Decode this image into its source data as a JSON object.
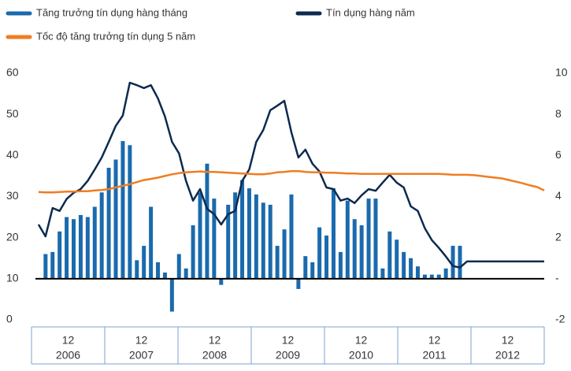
{
  "chart_data": {
    "type": "bar-line",
    "legend": "top-left",
    "categories": [
      {
        "month": "12",
        "year": "2006"
      },
      {
        "month": "12",
        "year": "2007"
      },
      {
        "month": "12",
        "year": "2008"
      },
      {
        "month": "12",
        "year": "2009"
      },
      {
        "month": "12",
        "year": "2010"
      },
      {
        "month": "12",
        "year": "2011"
      },
      {
        "month": "12",
        "year": "2012"
      }
    ],
    "x": [
      1,
      2,
      3,
      4,
      5,
      6,
      7,
      8,
      9,
      10,
      11,
      12,
      13,
      14,
      15,
      16,
      17,
      18,
      19,
      20,
      21,
      22,
      23,
      24,
      25,
      26,
      27,
      28,
      29,
      30,
      31,
      32,
      33,
      34,
      35,
      36,
      37,
      38,
      39,
      40,
      41,
      42,
      43,
      44,
      45,
      46,
      47,
      48,
      49,
      50,
      51,
      52,
      53,
      54,
      55,
      56,
      57,
      58,
      59,
      60,
      61,
      62,
      63,
      64,
      65,
      66,
      67,
      68,
      69,
      70,
      71,
      72,
      73
    ],
    "xlim": [
      0,
      73
    ],
    "ylim": [
      0,
      60
    ],
    "yticks": [
      0,
      10,
      20,
      30,
      40,
      50,
      60
    ],
    "y2lim": [
      -2,
      10
    ],
    "y2ticks": [
      -2,
      {
        "value": 0,
        "label": "-"
      },
      2,
      4,
      6,
      8,
      10
    ],
    "series": [
      {
        "name": "Tăng trưởng tín dụng hàng tháng",
        "type": "bar",
        "axis": "y2",
        "color": "#1a6aad",
        "values": [
          null,
          1.2,
          1.3,
          2.3,
          3.0,
          2.9,
          3.1,
          3.0,
          3.5,
          4.2,
          5.4,
          5.8,
          6.7,
          6.5,
          0.9,
          1.6,
          3.5,
          0.8,
          0.3,
          -1.6,
          1.2,
          0.5,
          2.6,
          4.2,
          5.6,
          3.9,
          -0.3,
          3.6,
          4.2,
          4.8,
          4.4,
          4.1,
          3.7,
          3.6,
          1.6,
          2.4,
          4.1,
          -0.5,
          1.1,
          0.8,
          2.5,
          2.1,
          4.4,
          1.3,
          3.8,
          2.9,
          2.6,
          3.9,
          3.9,
          0.5,
          2.3,
          1.9,
          1.3,
          1.0,
          0.6,
          0.2,
          0.2,
          0.2,
          0.5,
          1.6,
          1.6,
          null,
          null,
          null,
          null,
          null,
          null,
          null,
          null,
          null,
          null,
          null,
          null
        ]
      },
      {
        "name": "Tín dụng hàng năm",
        "type": "line",
        "color": "#0d2a4f",
        "values": [
          23.2,
          20.3,
          27.2,
          26.5,
          29.4,
          30.9,
          31.8,
          33.8,
          36.6,
          39.5,
          43.3,
          47.2,
          49.7,
          57.7,
          57.1,
          56.4,
          57.1,
          53.9,
          49.5,
          43.3,
          40.5,
          33.8,
          29.0,
          31.8,
          27.0,
          25.7,
          23.2,
          25.7,
          26.5,
          33.8,
          36.6,
          43.3,
          46.2,
          51.0,
          52.1,
          53.3,
          45.6,
          39.5,
          41.4,
          38.0,
          36.1,
          32.2,
          31.8,
          29.0,
          29.5,
          28.4,
          30.3,
          31.8,
          31.4,
          33.4,
          35.3,
          33.4,
          32.2,
          27.6,
          26.5,
          22.3,
          19.4,
          17.5,
          15.4,
          13.1,
          12.7,
          14.2,
          14.2,
          14.2,
          14.2,
          14.2,
          14.2,
          14.2,
          14.2,
          14.2,
          14.2,
          14.2,
          14.2
        ]
      },
      {
        "name": "Tốc độ tăng trưởng tín dụng 5 năm",
        "type": "line",
        "color": "#ef7d22",
        "values": [
          31.1,
          31.0,
          31.0,
          31.1,
          31.2,
          31.2,
          31.3,
          31.3,
          31.5,
          31.6,
          31.8,
          32.2,
          32.6,
          33.0,
          33.5,
          34.0,
          34.3,
          34.6,
          35.0,
          35.4,
          35.7,
          35.9,
          36.0,
          36.1,
          36.0,
          36.0,
          35.9,
          35.8,
          35.7,
          35.6,
          35.5,
          35.4,
          35.4,
          35.6,
          35.9,
          36.0,
          36.2,
          36.2,
          36.0,
          35.9,
          35.9,
          35.8,
          35.8,
          35.7,
          35.6,
          35.6,
          35.5,
          35.5,
          35.5,
          35.5,
          35.5,
          35.5,
          35.5,
          35.5,
          35.5,
          35.5,
          35.5,
          35.5,
          35.4,
          35.3,
          35.3,
          35.3,
          35.2,
          35.0,
          34.8,
          34.6,
          34.4,
          34.0,
          33.6,
          33.2,
          32.7,
          32.3,
          31.5
        ]
      }
    ]
  }
}
